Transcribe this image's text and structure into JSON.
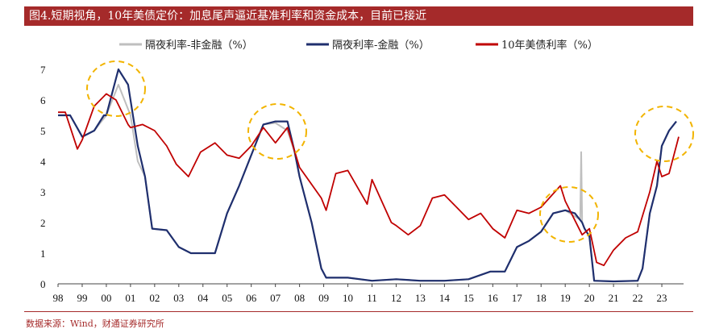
{
  "title": "图4.短期视角，10年美债定价：加息尾声逼近基准利率和资金成本，目前已接近",
  "source": "数据来源：Wind，财通证券研究所",
  "colors": {
    "title_bg": "#a52a2a",
    "series_nonfin": "#bfbfbf",
    "series_fin": "#1f2f6e",
    "series_10y": "#c00000",
    "highlight": "#f2b400"
  },
  "chart_data": {
    "type": "line",
    "xlabel": "",
    "ylabel": "",
    "xlim": [
      1998,
      2023.9
    ],
    "ylim": [
      0,
      7
    ],
    "x_ticks": [
      "98",
      "99",
      "00",
      "01",
      "02",
      "03",
      "04",
      "05",
      "06",
      "07",
      "08",
      "09",
      "10",
      "11",
      "12",
      "13",
      "14",
      "15",
      "16",
      "17",
      "18",
      "19",
      "20",
      "21",
      "22",
      "23"
    ],
    "y_ticks": [
      "0",
      "1",
      "2",
      "3",
      "4",
      "5",
      "6",
      "7"
    ],
    "legend_position": "top",
    "series": [
      {
        "name": "隔夜利率-非金融（%）",
        "x": [
          1998,
          1998.5,
          1999,
          1999.5,
          2000,
          2000.5,
          2001,
          2001.3,
          2001.6,
          2001.9,
          2002.5,
          2003,
          2003.5,
          2004,
          2004.5,
          2005,
          2005.5,
          2006,
          2006.5,
          2007,
          2007.5,
          2007.8,
          2008,
          2008.5,
          2008.9,
          2009.1,
          2010,
          2011,
          2012,
          2013,
          2014,
          2015,
          2015.9,
          2016.5,
          2017,
          2017.5,
          2018,
          2018.5,
          2019,
          2019.4,
          2019.62,
          2019.66,
          2019.7,
          2019.8,
          2020,
          2020.2,
          2021,
          2022,
          2022.2,
          2022.5,
          2022.8,
          2023,
          2023.3,
          2023.6
        ],
        "values": [
          5.5,
          5.5,
          4.8,
          5.0,
          5.5,
          6.5,
          5.5,
          4.0,
          3.5,
          1.8,
          1.75,
          1.2,
          1.0,
          1.0,
          1.0,
          2.3,
          3.2,
          4.2,
          5.2,
          5.25,
          5.0,
          4.3,
          3.5,
          2.0,
          0.5,
          0.2,
          0.2,
          0.1,
          0.15,
          0.1,
          0.1,
          0.15,
          0.4,
          0.4,
          1.2,
          1.4,
          1.7,
          2.3,
          2.4,
          2.2,
          2.1,
          4.3,
          2.0,
          1.8,
          1.55,
          0.1,
          0.08,
          0.1,
          0.5,
          2.3,
          3.2,
          4.5,
          5.0,
          5.3
        ]
      },
      {
        "name": "隔夜利率-金融（%）",
        "x": [
          1998,
          1998.5,
          1999,
          1999.5,
          1999.9,
          2000,
          2000.5,
          2000.9,
          2001,
          2001.3,
          2001.6,
          2001.9,
          2002.5,
          2003,
          2003.5,
          2004,
          2004.5,
          2005,
          2005.5,
          2006,
          2006.5,
          2007,
          2007.5,
          2007.8,
          2008,
          2008.5,
          2008.9,
          2009.1,
          2010,
          2011,
          2012,
          2013,
          2014,
          2015,
          2015.9,
          2016.5,
          2017,
          2017.5,
          2018,
          2018.5,
          2019,
          2019.4,
          2019.7,
          2019.8,
          2020,
          2020.2,
          2021,
          2022,
          2022.2,
          2022.5,
          2022.8,
          2023,
          2023.3,
          2023.6
        ],
        "values": [
          5.5,
          5.5,
          4.8,
          5.0,
          5.5,
          5.5,
          7.0,
          6.5,
          6.0,
          4.5,
          3.5,
          1.8,
          1.75,
          1.2,
          1.0,
          1.0,
          1.0,
          2.3,
          3.2,
          4.2,
          5.2,
          5.3,
          5.3,
          4.3,
          3.5,
          2.0,
          0.5,
          0.2,
          0.2,
          0.1,
          0.15,
          0.1,
          0.1,
          0.15,
          0.4,
          0.4,
          1.2,
          1.4,
          1.7,
          2.3,
          2.4,
          2.3,
          2.0,
          1.8,
          1.55,
          0.1,
          0.08,
          0.1,
          0.5,
          2.3,
          3.2,
          4.5,
          5.0,
          5.3
        ]
      },
      {
        "name": "10年美债利率（%）",
        "x": [
          1998,
          1998.3,
          1998.8,
          1999,
          1999.5,
          2000,
          2000.4,
          2000.9,
          2001,
          2001.5,
          2002,
          2002.5,
          2002.9,
          2003.4,
          2003.9,
          2004.5,
          2005,
          2005.5,
          2006,
          2006.5,
          2007,
          2007.5,
          2008,
          2008.9,
          2009.1,
          2009.5,
          2010,
          2010.8,
          2011,
          2011.8,
          2012,
          2012.5,
          2013,
          2013.5,
          2014,
          2014.5,
          2015,
          2015.5,
          2016,
          2016.5,
          2017,
          2017.5,
          2018,
          2018.8,
          2019,
          2019.7,
          2020,
          2020.3,
          2020.6,
          2021,
          2021.5,
          2022,
          2022.5,
          2022.8,
          2023,
          2023.3,
          2023.7
        ],
        "values": [
          5.6,
          5.6,
          4.4,
          4.7,
          5.8,
          6.2,
          6.0,
          5.2,
          5.1,
          5.2,
          5.0,
          4.5,
          3.9,
          3.5,
          4.3,
          4.6,
          4.2,
          4.1,
          4.5,
          5.1,
          4.6,
          5.1,
          3.8,
          2.8,
          2.4,
          3.6,
          3.7,
          2.6,
          3.4,
          2.0,
          1.9,
          1.6,
          1.9,
          2.8,
          2.9,
          2.5,
          2.1,
          2.3,
          1.8,
          1.5,
          2.4,
          2.3,
          2.5,
          3.2,
          2.7,
          1.6,
          1.8,
          0.7,
          0.6,
          1.1,
          1.5,
          1.7,
          3.0,
          4.0,
          3.5,
          3.6,
          4.8
        ]
      }
    ]
  }
}
